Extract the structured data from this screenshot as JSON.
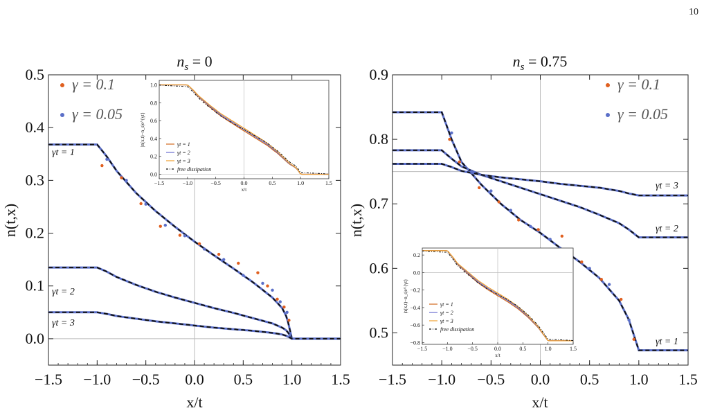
{
  "page": {
    "number": "10"
  },
  "colors": {
    "gamma_01": "#e06020",
    "gamma_005": "#5b6fc8",
    "theory": "#111111",
    "inset_gt1": "#d2691e",
    "inset_gt2": "#6a6fd0",
    "inset_gt3": "#f0a030",
    "gridline": "#bbbbbb"
  },
  "chart_data": [
    {
      "type": "line",
      "title_main": "n",
      "title_sub": "s",
      "title_rest": " = 0",
      "xlabel": "x/t",
      "ylabel": "n(t,x)",
      "xlim": [
        -1.5,
        1.5
      ],
      "ylim": [
        -0.05,
        0.5
      ],
      "xticks": [
        "−1.5",
        "−1.0",
        "−0.5",
        "0.0",
        "0.5",
        "1.0",
        "1.5"
      ],
      "yticks": [
        "0.0",
        "0.1",
        "0.2",
        "0.3",
        "0.4",
        "0.5"
      ],
      "legend": [
        {
          "label": "γ = 0.1",
          "color": "#e06020"
        },
        {
          "label": "γ = 0.05",
          "color": "#5b6fc8"
        }
      ],
      "curve_labels": [
        "γt = 1",
        "γt = 2",
        "γt = 3"
      ],
      "series": [
        {
          "gt": 1,
          "x": [
            -1.5,
            -1.0,
            -0.9,
            -0.8,
            -0.6,
            -0.4,
            -0.2,
            0.0,
            0.2,
            0.4,
            0.6,
            0.8,
            0.9,
            0.95,
            1.0,
            1.5
          ],
          "y": [
            0.368,
            0.368,
            0.345,
            0.318,
            0.276,
            0.242,
            0.212,
            0.184,
            0.158,
            0.133,
            0.107,
            0.078,
            0.058,
            0.04,
            0.0,
            0.0
          ]
        },
        {
          "gt": 2,
          "x": [
            -1.5,
            -1.0,
            -0.9,
            -0.8,
            -0.6,
            -0.4,
            -0.2,
            0.0,
            0.2,
            0.4,
            0.6,
            0.8,
            0.9,
            0.95,
            1.0,
            1.5
          ],
          "y": [
            0.135,
            0.135,
            0.127,
            0.117,
            0.102,
            0.089,
            0.078,
            0.068,
            0.058,
            0.049,
            0.039,
            0.029,
            0.021,
            0.015,
            0.0,
            0.0
          ]
        },
        {
          "gt": 3,
          "x": [
            -1.5,
            -1.0,
            -0.9,
            -0.8,
            -0.6,
            -0.4,
            -0.2,
            0.0,
            0.2,
            0.4,
            0.6,
            0.8,
            0.9,
            0.95,
            1.0,
            1.5
          ],
          "y": [
            0.05,
            0.05,
            0.047,
            0.043,
            0.038,
            0.033,
            0.029,
            0.025,
            0.021,
            0.018,
            0.015,
            0.011,
            0.008,
            0.005,
            0.0,
            0.0
          ]
        }
      ],
      "scatter_points": {
        "gamma_01": {
          "x": [
            -0.95,
            -0.75,
            -0.55,
            -0.35,
            -0.15,
            0.05,
            0.25,
            0.45,
            0.65,
            0.75,
            0.85,
            0.92,
            0.97
          ],
          "y": [
            0.328,
            0.305,
            0.256,
            0.213,
            0.196,
            0.18,
            0.16,
            0.143,
            0.125,
            0.1,
            0.075,
            0.06,
            0.035
          ]
        },
        "gamma_005": {
          "x": [
            -0.9,
            -0.7,
            -0.5,
            -0.3,
            -0.1,
            0.1,
            0.3,
            0.5,
            0.7,
            0.8,
            0.88,
            0.95
          ],
          "y": [
            0.34,
            0.3,
            0.255,
            0.215,
            0.195,
            0.17,
            0.15,
            0.12,
            0.105,
            0.092,
            0.07,
            0.05
          ]
        }
      },
      "inset": {
        "ylabel": "|n(x,t)−n_s|e^{γt}",
        "xlabel": "x/t",
        "xlim": [
          -1.5,
          1.5
        ],
        "ylim": [
          -0.05,
          1.05
        ],
        "xticks": [
          "−1.5",
          "−1.0",
          "−0.5",
          "0.0",
          "0.5",
          "1.0",
          "1.5"
        ],
        "yticks": [
          "0.0",
          "0.2",
          "0.4",
          "0.6",
          "0.8",
          "1.0"
        ],
        "legend": [
          "γt = 1",
          "γt = 2",
          "γt = 3",
          "free dissipation"
        ],
        "x": [
          -1.5,
          -1.0,
          -0.9,
          -0.8,
          -0.6,
          -0.4,
          -0.2,
          0.0,
          0.2,
          0.4,
          0.6,
          0.8,
          0.9,
          0.95,
          1.0,
          1.5
        ],
        "y": [
          1.0,
          1.0,
          0.94,
          0.87,
          0.76,
          0.66,
          0.58,
          0.5,
          0.42,
          0.34,
          0.24,
          0.12,
          0.08,
          0.05,
          0.0,
          0.0
        ]
      }
    },
    {
      "type": "line",
      "title_main": "n",
      "title_sub": "s",
      "title_rest": " = 0.75",
      "xlabel": "x/t",
      "ylabel": "n(t,x)",
      "xlim": [
        -1.5,
        1.5
      ],
      "ylim": [
        0.45,
        0.9
      ],
      "xticks": [
        "−1.5",
        "−1.0",
        "−0.5",
        "0.0",
        "0.5",
        "1.0",
        "1.5"
      ],
      "yticks": [
        "0.5",
        "0.6",
        "0.7",
        "0.8",
        "0.9"
      ],
      "legend": [
        {
          "label": "γ = 0.1",
          "color": "#e06020"
        },
        {
          "label": "γ = 0.05",
          "color": "#5b6fc8"
        }
      ],
      "curve_labels": [
        "γt = 3",
        "γt = 2",
        "γt = 1"
      ],
      "ns_line": 0.75,
      "series": [
        {
          "gt": 1,
          "x": [
            -1.5,
            -1.0,
            -0.9,
            -0.8,
            -0.6,
            -0.4,
            -0.2,
            0.0,
            0.2,
            0.4,
            0.6,
            0.8,
            0.9,
            1.0,
            1.5
          ],
          "y": [
            0.842,
            0.842,
            0.8,
            0.765,
            0.73,
            0.7,
            0.675,
            0.655,
            0.632,
            0.61,
            0.585,
            0.55,
            0.52,
            0.473,
            0.473
          ]
        },
        {
          "gt": 2,
          "x": [
            -1.5,
            -1.0,
            -0.9,
            -0.8,
            -0.6,
            -0.4,
            -0.2,
            0.0,
            0.2,
            0.4,
            0.6,
            0.8,
            0.9,
            1.0,
            1.5
          ],
          "y": [
            0.783,
            0.783,
            0.77,
            0.758,
            0.745,
            0.735,
            0.725,
            0.715,
            0.705,
            0.695,
            0.683,
            0.67,
            0.66,
            0.648,
            0.648
          ]
        },
        {
          "gt": 3,
          "x": [
            -1.5,
            -1.0,
            -0.9,
            -0.8,
            -0.6,
            -0.4,
            -0.2,
            0.0,
            0.2,
            0.4,
            0.6,
            0.8,
            0.9,
            1.0,
            1.5
          ],
          "y": [
            0.762,
            0.762,
            0.757,
            0.751,
            0.745,
            0.741,
            0.738,
            0.735,
            0.731,
            0.728,
            0.725,
            0.72,
            0.716,
            0.713,
            0.713
          ]
        }
      ],
      "scatter_points": {
        "gamma_01": {
          "x": [
            -0.92,
            -0.82,
            -0.62,
            -0.42,
            -0.22,
            -0.02,
            0.22,
            0.42,
            0.62,
            0.82,
            0.95
          ],
          "y": [
            0.8,
            0.765,
            0.725,
            0.703,
            0.675,
            0.66,
            0.65,
            0.61,
            0.583,
            0.552,
            0.49
          ]
        },
        "gamma_005": {
          "x": [
            -0.9,
            -0.7,
            -0.5,
            -0.3,
            -0.1,
            0.1,
            0.3,
            0.5,
            0.7,
            0.9
          ],
          "y": [
            0.81,
            0.75,
            0.72,
            0.69,
            0.665,
            0.645,
            0.625,
            0.6,
            0.575,
            0.52
          ]
        }
      },
      "inset": {
        "ylabel": "|n(x,t)−n_s|e^{γt}",
        "xlabel": "x/t",
        "xlim": [
          -1.5,
          1.5
        ],
        "ylim": [
          -0.82,
          0.28
        ],
        "xticks": [
          "−1.5",
          "−1.0",
          "−0.5",
          "0.0",
          "0.5",
          "1.0",
          "1.5"
        ],
        "yticks": [
          "0.2",
          "0.0",
          "−0.2",
          "−0.4",
          "−0.6",
          "−0.8"
        ],
        "legend": [
          "γt = 1",
          "γt = 2",
          "γt = 3",
          "free dissipation"
        ],
        "x": [
          -1.5,
          -1.0,
          -0.9,
          -0.8,
          -0.6,
          -0.4,
          -0.2,
          0.0,
          0.2,
          0.4,
          0.6,
          0.8,
          0.9,
          1.0,
          1.5
        ],
        "y": [
          0.25,
          0.25,
          0.18,
          0.1,
          0.0,
          -0.1,
          -0.18,
          -0.25,
          -0.32,
          -0.4,
          -0.5,
          -0.62,
          -0.7,
          -0.78,
          -0.78
        ]
      }
    }
  ]
}
